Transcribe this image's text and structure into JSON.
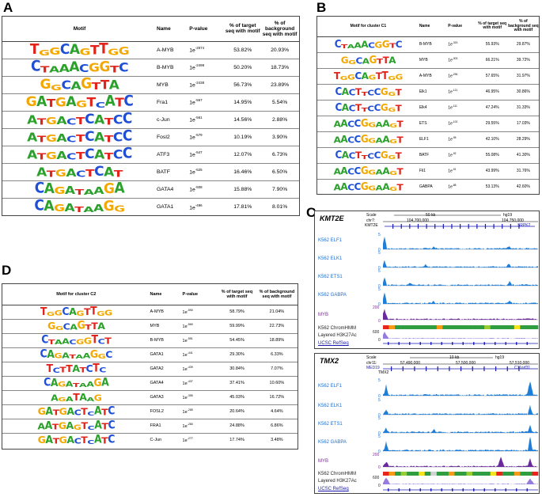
{
  "panels": {
    "A": "A",
    "B": "B",
    "C": "C",
    "D": "D"
  },
  "colors": {
    "A": "#2aa12a",
    "C": "#1f4fd6",
    "G": "#f2a800",
    "T": "#e0241b",
    "track_blue": "#1f7fd8",
    "myb_purple": "#6a2a9e",
    "h3k27_purple": "#7b5bd6"
  },
  "tableA": {
    "headers": [
      "Motif",
      "Name",
      "P-value",
      "% of target seq with motif",
      "% of background seq with motif"
    ],
    "rows": [
      {
        "logo": "TGGCAGTTGG",
        "name": "A-MYB",
        "p_base": "1e",
        "p_exp": "-2574",
        "target": "53.82%",
        "background": "20.93%"
      },
      {
        "logo": "CTAAACGGTC",
        "name": "B-MYB",
        "p_base": "1e",
        "p_exp": "-2498",
        "target": "50.20%",
        "background": "18.73%"
      },
      {
        "logo": "GGCAGTTA",
        "name": "MYB",
        "p_base": "1e",
        "p_exp": "-2438",
        "target": "56.73%",
        "background": "23.89%"
      },
      {
        "logo": "GATGAGTCATC",
        "name": "Fra1",
        "p_base": "1e",
        "p_exp": "-567",
        "target": "14.95%",
        "background": "5.54%"
      },
      {
        "logo": "ATGACTCATCC",
        "name": "c-Jun",
        "p_base": "1e",
        "p_exp": "-561",
        "target": "14.56%",
        "background": "2.88%"
      },
      {
        "logo": "ATGACTCATCC",
        "name": "Fosl2",
        "p_base": "1e",
        "p_exp": "-579",
        "target": "10.19%",
        "background": "3.90%"
      },
      {
        "logo": "ATGACTCATCC",
        "name": "ATF3",
        "p_base": "1e",
        "p_exp": "-547",
        "target": "12.07%",
        "background": "6.73%"
      },
      {
        "logo": "ATGACTCAT",
        "name": "BATF",
        "p_base": "1e",
        "p_exp": "-525",
        "target": "16.46%",
        "background": "6.50%"
      },
      {
        "logo": "CAGATAAGA",
        "name": "GATA4",
        "p_base": "1e",
        "p_exp": "-508",
        "target": "15.88%",
        "background": "7.90%"
      },
      {
        "logo": "CAGATAAGG",
        "name": "GATA1",
        "p_base": "1e",
        "p_exp": "-496",
        "target": "17.81%",
        "background": "8.01%"
      }
    ]
  },
  "tableB": {
    "headers": [
      "Motif for cluster C1",
      "Name",
      "P-value",
      "% of target seq with motif",
      "% of background seq with motif"
    ],
    "rows": [
      {
        "logo": "CTAAACGGTC",
        "name": "B-MYB",
        "p_base": "1e",
        "p_exp": "-315",
        "target": "55.93%",
        "background": "29.87%"
      },
      {
        "logo": "GGCAGTTA",
        "name": "MYB",
        "p_base": "1e",
        "p_exp": "-303",
        "target": "66.21%",
        "background": "39.72%"
      },
      {
        "logo": "TGGCAGTTGG",
        "name": "A-MYB",
        "p_base": "1e",
        "p_exp": "-296",
        "target": "57.65%",
        "background": "31.97%"
      },
      {
        "logo": "CACTTCCGGT",
        "name": "Elk1",
        "p_base": "1e",
        "p_exp": "-121",
        "target": "46.95%",
        "background": "30.86%"
      },
      {
        "logo": "CACTTCCGGT",
        "name": "Elk4",
        "p_base": "1e",
        "p_exp": "-111",
        "target": "47.24%",
        "background": "31.33%"
      },
      {
        "logo": "AACCGGAAGT",
        "name": "ETS",
        "p_base": "1e",
        "p_exp": "-102",
        "target": "29.55%",
        "background": "17.03%"
      },
      {
        "logo": "AACCGGAAGT",
        "name": "ELF1",
        "p_base": "1e",
        "p_exp": "-95",
        "target": "42.10%",
        "background": "28.29%"
      },
      {
        "logo": "CACTTCCGGT",
        "name": "BATF",
        "p_base": "1e",
        "p_exp": "-92",
        "target": "55.08%",
        "background": "41.30%"
      },
      {
        "logo": "AACCGGAAGT",
        "name": "Fli1",
        "p_base": "1e",
        "p_exp": "-91",
        "target": "43.99%",
        "background": "31.76%"
      },
      {
        "logo": "AACCGGAAGT",
        "name": "GABPA",
        "p_base": "1e",
        "p_exp": "-88",
        "target": "53.13%",
        "background": "42.60%"
      }
    ]
  },
  "tableD": {
    "headers": [
      "Motif for cluster C2",
      "Name",
      "P-value",
      "% of target seq with motif",
      "% of background seq with motif"
    ],
    "rows": [
      {
        "logo": "TGGCAGTTGG",
        "name": "A-MYB",
        "p_base": "1e",
        "p_exp": "-590",
        "target": "58.79%",
        "background": "21.04%"
      },
      {
        "logo": "GGCAGTTA",
        "name": "MYB",
        "p_base": "1e",
        "p_exp": "-569",
        "target": "59.99%",
        "background": "22.73%"
      },
      {
        "logo": "CTAACGGTCT",
        "name": "B-MYB",
        "p_base": "1e",
        "p_exp": "-551",
        "target": "54.45%",
        "background": "18.89%"
      },
      {
        "logo": "CAGATAAGGC",
        "name": "GATA1",
        "p_base": "1e",
        "p_exp": "-441",
        "target": "29.30%",
        "background": "6.33%"
      },
      {
        "logo": "TCTTATCTC",
        "name": "GATA2",
        "p_base": "1e",
        "p_exp": "-439",
        "target": "30.84%",
        "background": "7.07%"
      },
      {
        "logo": "CAGATAAGA",
        "name": "GATA4",
        "p_base": "1e",
        "p_exp": "-437",
        "target": "37.41%",
        "background": "10.60%"
      },
      {
        "logo": "AGATAAG",
        "name": "GATA3",
        "p_base": "1e",
        "p_exp": "-355",
        "target": "45.03%",
        "background": "16.72%"
      },
      {
        "logo": "GATGACTCATC",
        "name": "FOSL2",
        "p_base": "1e",
        "p_exp": "-285",
        "target": "20.64%",
        "background": "4.64%"
      },
      {
        "logo": "AATGAGTCATC",
        "name": "FRA1",
        "p_base": "1e",
        "p_exp": "-280",
        "target": "24.88%",
        "background": "6.86%"
      },
      {
        "logo": "GATGACTCATC",
        "name": "C-Jun",
        "p_base": "1e",
        "p_exp": "-277",
        "target": "17.74%",
        "background": "3.48%"
      }
    ]
  },
  "browser1": {
    "gene": "KMT2E",
    "scale_label": "Scale",
    "scale_value": "50 kb",
    "assembly": "hg19",
    "chrom": "chr7:",
    "coord1": "104,700,000",
    "coord2": "104,750,000",
    "gene_name_left": "KMT2E",
    "gene_name_right": "SRPK2",
    "tracks": [
      "K562 ELF1",
      "K562 ELK1",
      "K562 ETS1",
      "K562 GABPA",
      "MYB",
      "K562 ChromHMM",
      "Layered H3K27Ac",
      "UCSC RefSeq"
    ],
    "ymax": [
      "5",
      "5",
      "5",
      "5",
      "200",
      "",
      "600",
      ""
    ],
    "ymin": "0"
  },
  "browser2": {
    "gene": "TMX2",
    "scale_label": "Scale",
    "scale_value": "10 kb",
    "assembly": "hg19",
    "chrom": "chr11:",
    "coord1": "57,490,000",
    "coord2": "57,500,000",
    "coord3": "57,510,000",
    "gene_name_left": "MED19",
    "gene_name_mid": "TMX2",
    "gene_name_right": "C11orf31",
    "tracks": [
      "K562 ELF1",
      "K562 ELK1",
      "K562 ETS1",
      "K562 GABPA",
      "MYB",
      "K562 ChromHMM",
      "Layered H3K27Ac",
      "UCSC RefSeq"
    ],
    "ymax": [
      "5",
      "5",
      "5",
      "5",
      "200",
      "",
      "600",
      ""
    ],
    "ymin": "0"
  }
}
